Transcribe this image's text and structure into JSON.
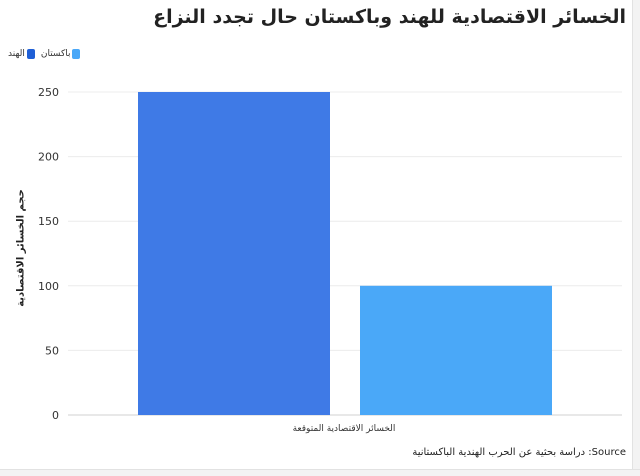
{
  "title": "الخسائر الاقتصادية للهند وباكستان حال تجدد النزاع",
  "legend": {
    "items": [
      {
        "label": "الهند",
        "color": "#1f5fd6"
      },
      {
        "label": "باكستان",
        "color": "#4aa8f8"
      }
    ]
  },
  "source": "Source: دراسة بحثية عن الحرب الهندية الباكستانية",
  "colors": {
    "india": "#3f7ae6",
    "pakistan": "#4aa8f8",
    "grid": "#ececec"
  },
  "chart_data": {
    "type": "bar",
    "title": "الخسائر الاقتصادية للهند وباكستان حال تجدد النزاع",
    "categories": [
      "الخسائر الاقتصادية المتوقعة"
    ],
    "series": [
      {
        "name": "الهند",
        "values": [
          250
        ]
      },
      {
        "name": "باكستان",
        "values": [
          100
        ]
      }
    ],
    "xlabel": "",
    "ylabel": "حجم الخسائر الاقتصادية",
    "ylim": [
      0,
      250
    ],
    "yticks": [
      0,
      50,
      100,
      150,
      200,
      250
    ],
    "grid": true,
    "legend_position": "top-left"
  }
}
